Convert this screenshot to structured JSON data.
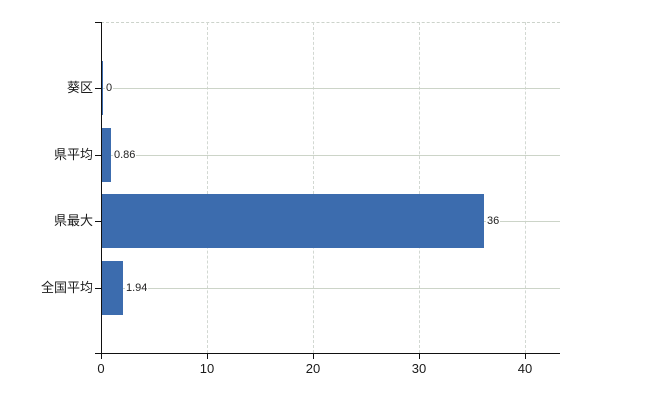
{
  "chart_data": {
    "type": "bar",
    "orientation": "horizontal",
    "title": "",
    "xlabel": "",
    "ylabel": "",
    "categories": [
      "葵区",
      "県平均",
      "県最大",
      "全国平均"
    ],
    "values": [
      0,
      0.86,
      36,
      1.94
    ],
    "value_labels": [
      "0",
      "0.86",
      "36",
      "1.94"
    ],
    "x_ticks": [
      0,
      10,
      20,
      30,
      40
    ],
    "x_tick_labels": [
      "0",
      "10",
      "20",
      "30",
      "40"
    ],
    "xlim": [
      0,
      43.3
    ],
    "grid": true,
    "legend_position": "none",
    "colors": {
      "bar": "#3c6cae",
      "axis": "#111111",
      "gridline_horizontal": "#ccd4c8",
      "gridline_vertical": "#d2d8d2",
      "plot_border_top": "#ccd3cb",
      "text": "#1b1b1b",
      "background": "#ffffff"
    }
  }
}
